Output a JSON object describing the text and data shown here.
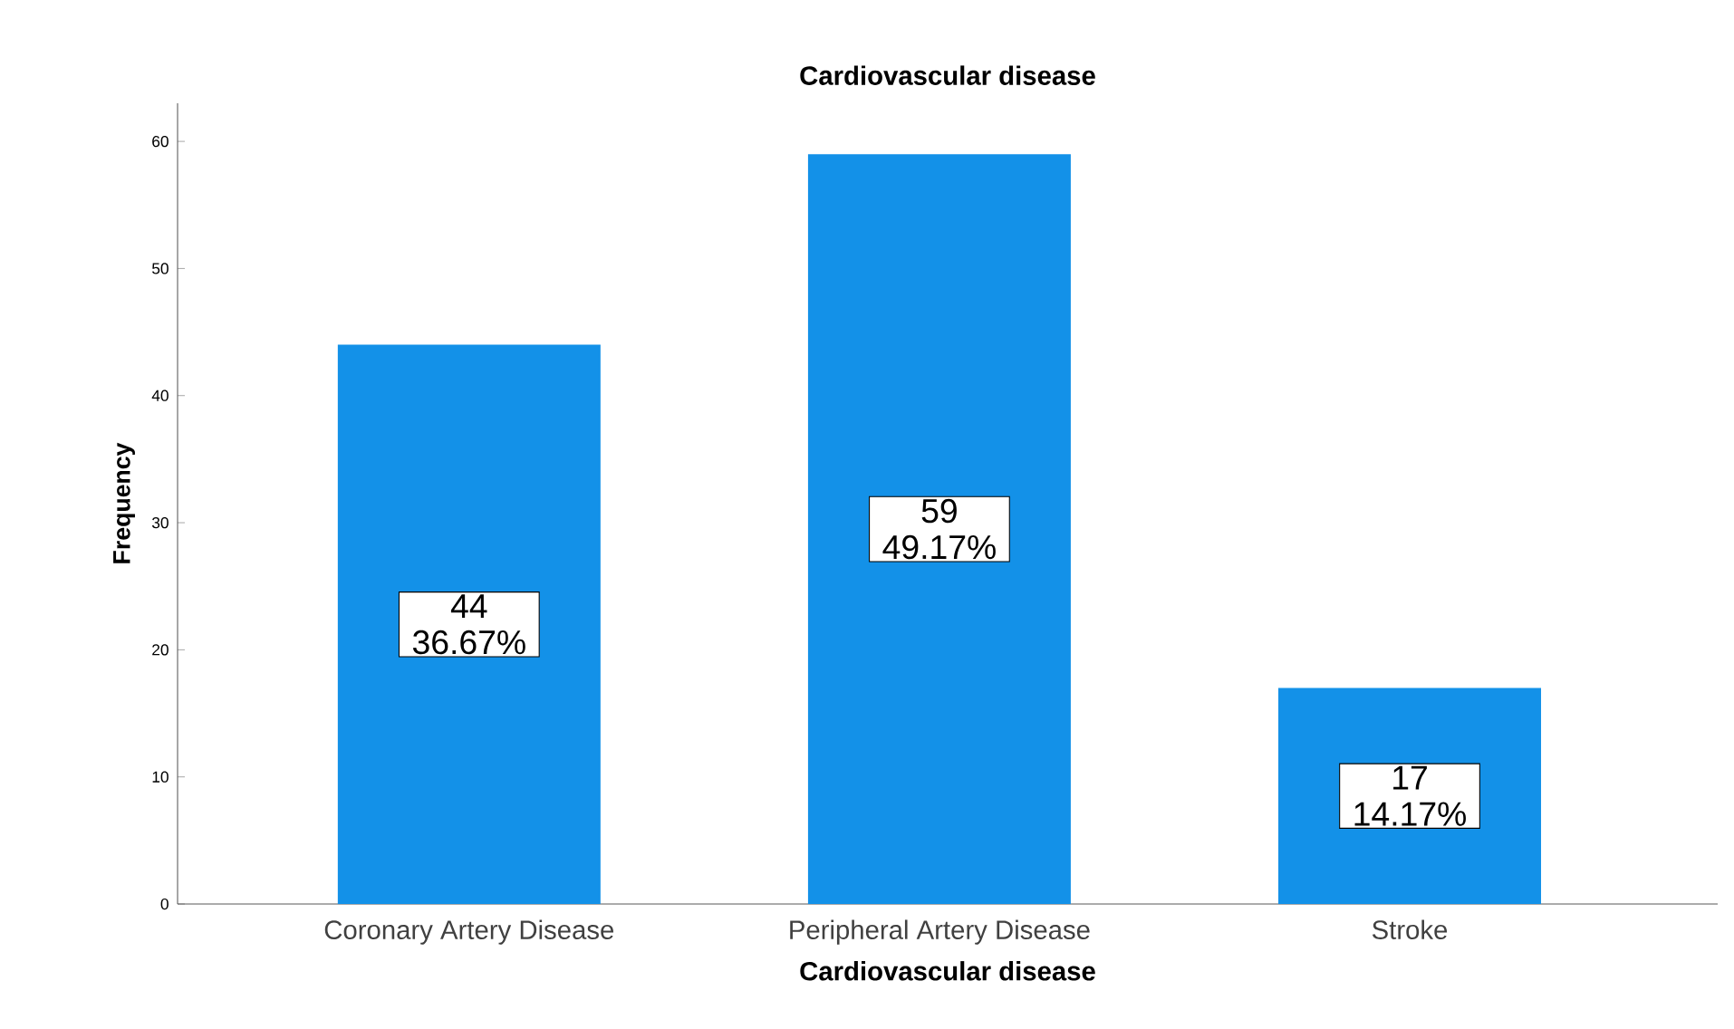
{
  "chart_data": {
    "type": "bar",
    "title": "Cardiovascular disease",
    "xlabel": "Cardiovascular disease",
    "ylabel": "Frequency",
    "categories": [
      "Coronary Artery Disease",
      "Peripheral Artery Disease",
      "Stroke"
    ],
    "values": [
      44,
      59,
      17
    ],
    "color": "#1391e8",
    "value_labels": [
      "44 36.67%",
      "59 49.17%",
      "17 14.17%"
    ],
    "ylim": [
      0,
      63
    ],
    "yticks": [
      0,
      10,
      20,
      30,
      40,
      50,
      60
    ],
    "grid": false
  }
}
